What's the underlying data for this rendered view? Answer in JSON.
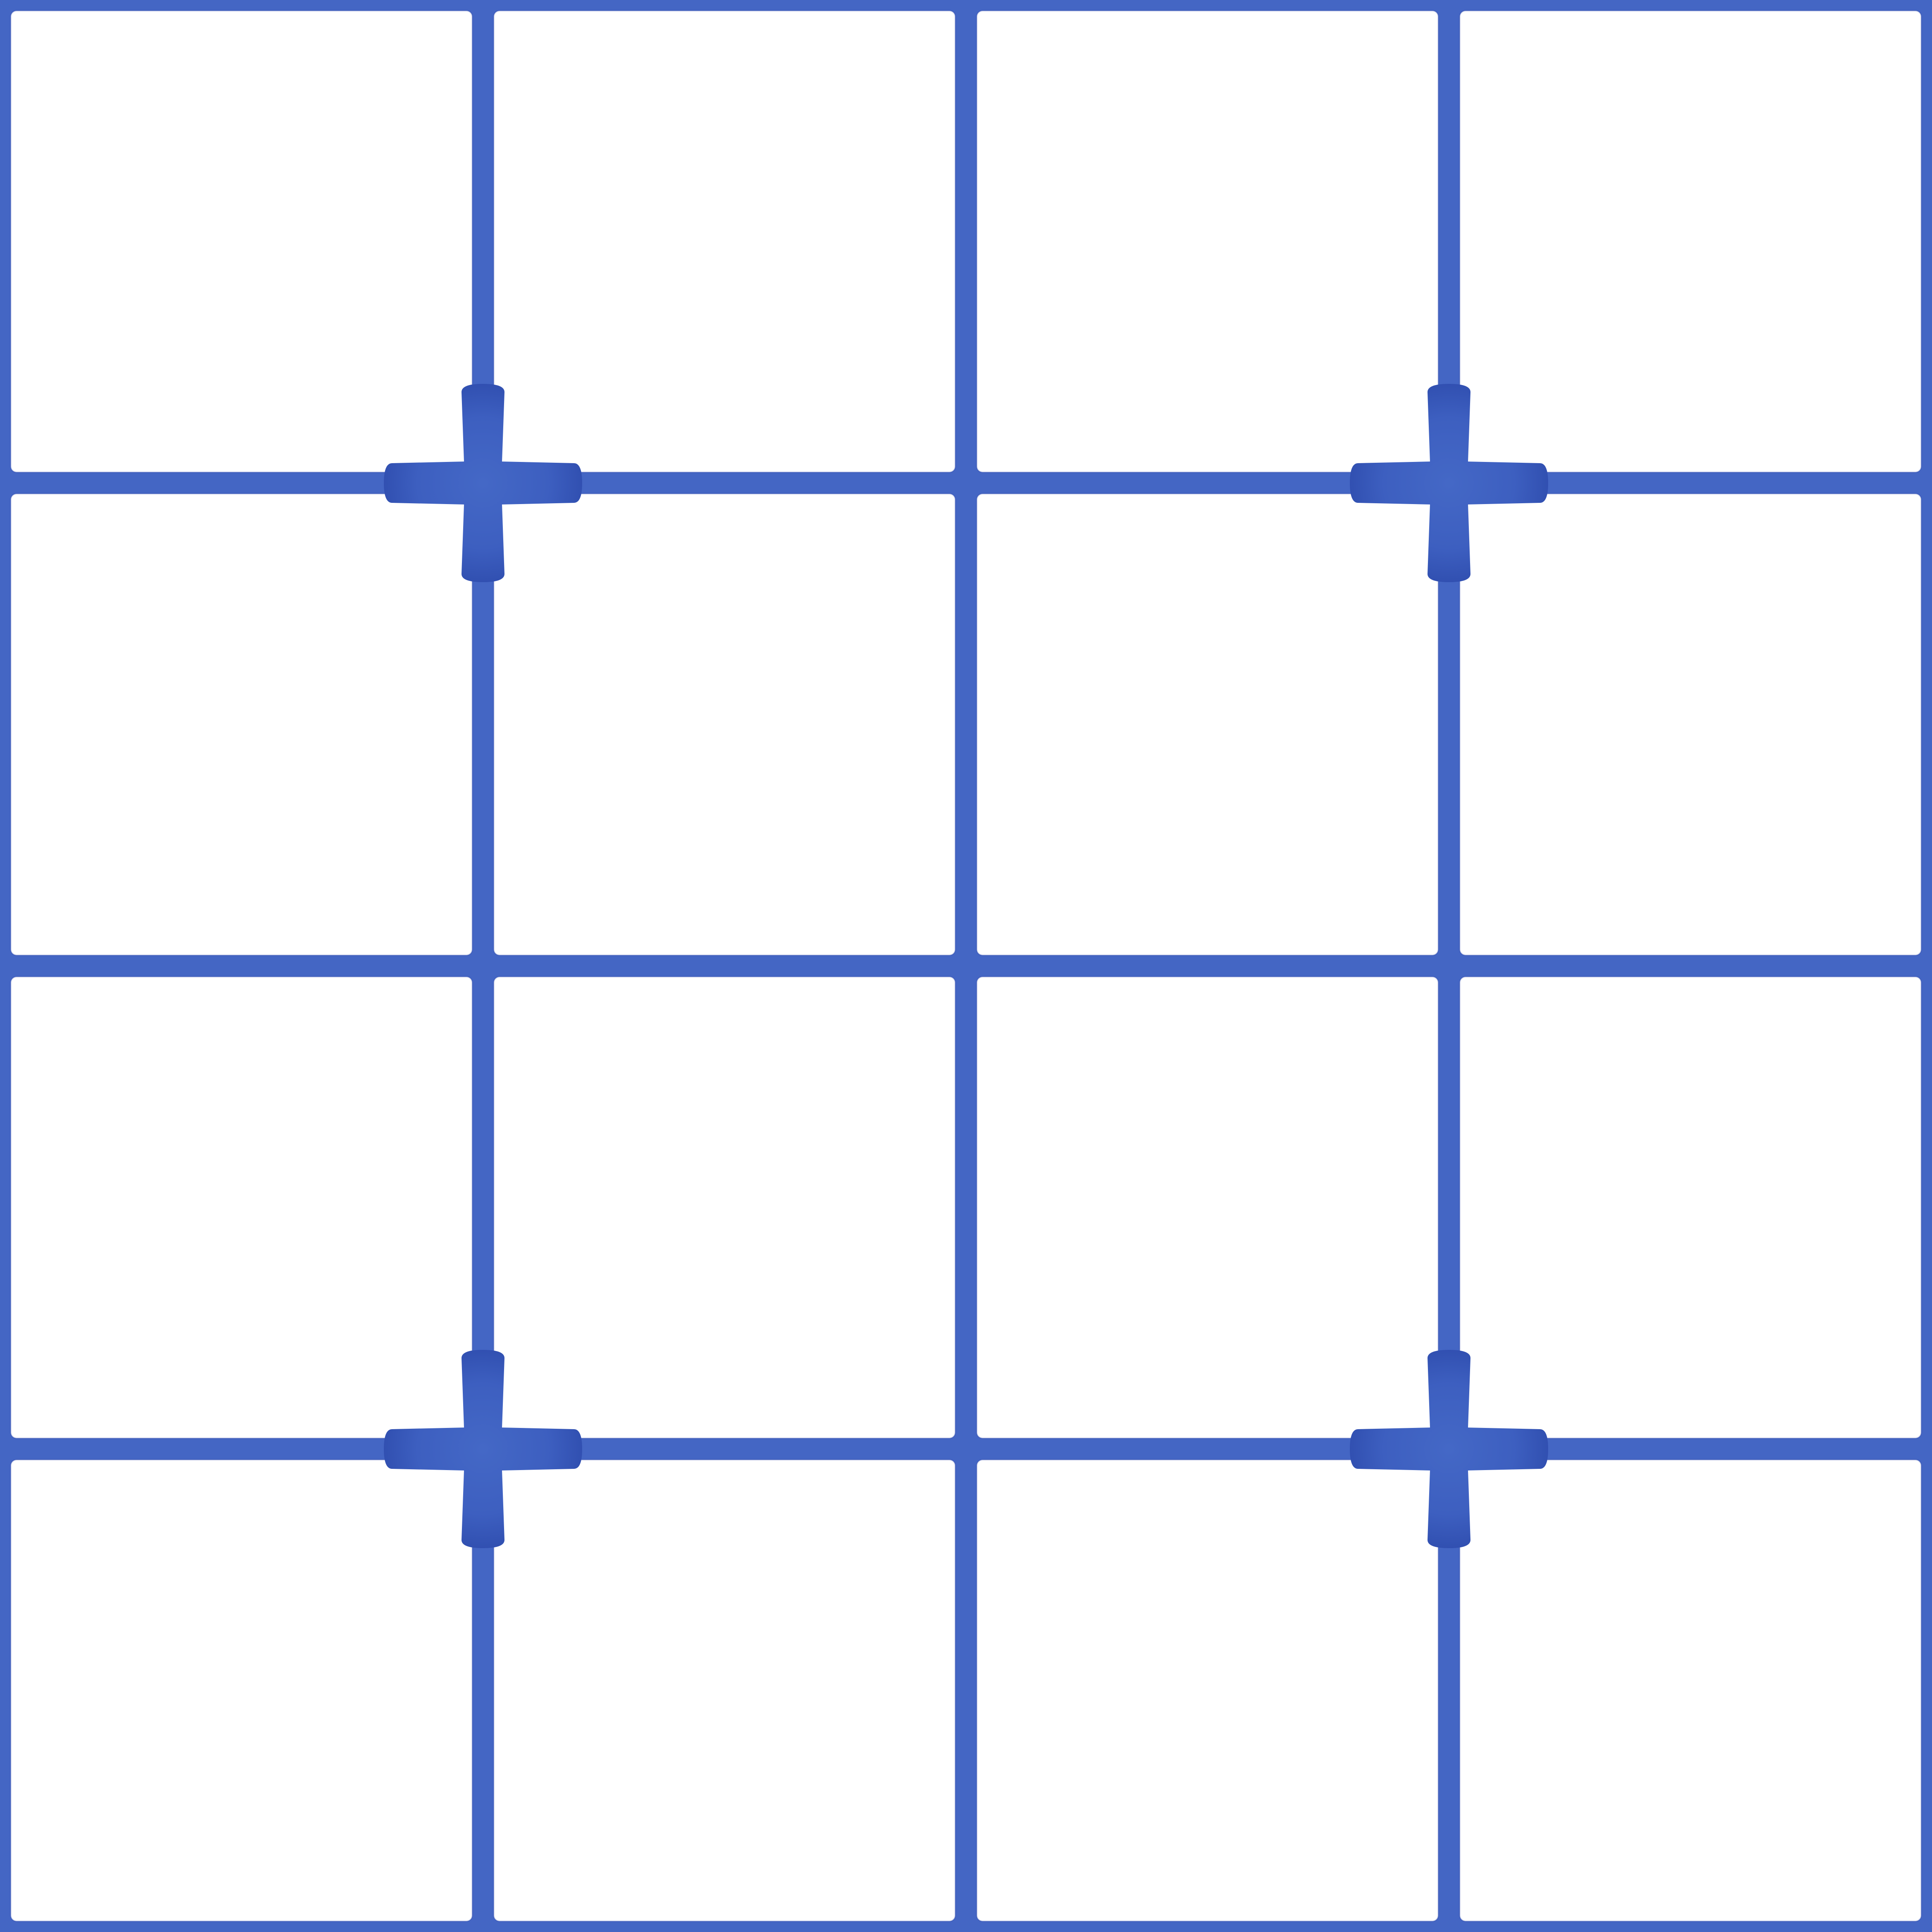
{
  "pattern": {
    "colors": {
      "background": "#ffffff",
      "grid_line": "#4466C4",
      "grid_line_dark": "#2A45A8",
      "cross_light": "#4468C6",
      "cross_dark": "#2340A0"
    },
    "grid": {
      "rows": 4,
      "columns": 4
    },
    "cross_ornaments": {
      "count": 4,
      "icon": "four-point-cross-icon"
    }
  }
}
